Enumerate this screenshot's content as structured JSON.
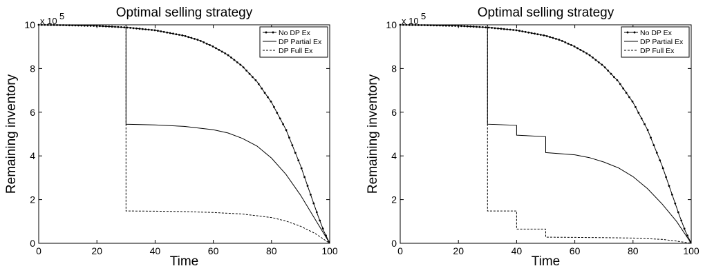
{
  "chart_data": [
    {
      "type": "line",
      "title": "Optimal selling strategy",
      "xlabel": "Time",
      "ylabel": "Remaining inventory",
      "y_multiplier_label": {
        "base": "x 10",
        "exponent": "5"
      },
      "xlim": [
        0,
        100
      ],
      "ylim": [
        0,
        10
      ],
      "x_ticks": [
        "0",
        "20",
        "40",
        "60",
        "80",
        "100"
      ],
      "y_ticks": [
        "0",
        "2",
        "4",
        "6",
        "8",
        "10"
      ],
      "grid": false,
      "legend_position": "top-right",
      "legend": [
        "No DP Ex",
        "DP Partial Ex",
        "DP Full Ex"
      ],
      "series": [
        {
          "name": "No DP Ex",
          "style": "solid-dots",
          "color": "#000000",
          "x": [
            0,
            10,
            20,
            30,
            40,
            50,
            55,
            60,
            65,
            70,
            75,
            80,
            85,
            90,
            93,
            96,
            98,
            100
          ],
          "y": [
            10,
            9.98,
            9.95,
            9.88,
            9.75,
            9.5,
            9.3,
            9.0,
            8.62,
            8.1,
            7.4,
            6.45,
            5.2,
            3.55,
            2.4,
            1.25,
            0.55,
            0
          ]
        },
        {
          "name": "DP Partial Ex",
          "style": "solid",
          "color": "#000000",
          "x": [
            0,
            30,
            30,
            40,
            50,
            60,
            65,
            70,
            75,
            80,
            85,
            90,
            95,
            100
          ],
          "y": [
            10,
            10,
            5.45,
            5.42,
            5.35,
            5.2,
            5.05,
            4.8,
            4.45,
            3.9,
            3.15,
            2.2,
            1.1,
            0
          ]
        },
        {
          "name": "DP Full Ex",
          "style": "dashed",
          "color": "#000000",
          "x": [
            0,
            30,
            30,
            40,
            50,
            60,
            70,
            80,
            85,
            90,
            95,
            100
          ],
          "y": [
            10,
            10,
            1.48,
            1.47,
            1.45,
            1.41,
            1.34,
            1.18,
            1.02,
            0.78,
            0.45,
            0
          ]
        }
      ]
    },
    {
      "type": "line",
      "title": "Optimal selling strategy",
      "xlabel": "Time",
      "ylabel": "Remaining inventory",
      "y_multiplier_label": {
        "base": "x 10",
        "exponent": "5"
      },
      "xlim": [
        0,
        100
      ],
      "ylim": [
        0,
        10
      ],
      "x_ticks": [
        "0",
        "20",
        "40",
        "60",
        "80",
        "100"
      ],
      "y_ticks": [
        "0",
        "2",
        "4",
        "6",
        "8",
        "10"
      ],
      "grid": false,
      "legend_position": "top-right",
      "legend": [
        "No DP Ex",
        "DP Partial Ex",
        "DP Full Ex"
      ],
      "series": [
        {
          "name": "No DP Ex",
          "style": "solid-dots",
          "color": "#000000",
          "x": [
            0,
            10,
            20,
            30,
            40,
            50,
            55,
            60,
            65,
            70,
            75,
            80,
            85,
            90,
            93,
            96,
            98,
            100
          ],
          "y": [
            10,
            9.98,
            9.95,
            9.88,
            9.75,
            9.5,
            9.3,
            9.0,
            8.62,
            8.1,
            7.4,
            6.45,
            5.2,
            3.55,
            2.4,
            1.25,
            0.55,
            0
          ]
        },
        {
          "name": "DP Partial Ex",
          "style": "solid",
          "color": "#000000",
          "x": [
            0,
            30,
            30,
            40,
            40,
            50,
            50,
            60,
            65,
            70,
            75,
            80,
            85,
            90,
            95,
            100
          ],
          "y": [
            10,
            10,
            5.45,
            5.4,
            4.95,
            4.88,
            4.15,
            4.05,
            3.92,
            3.72,
            3.45,
            3.05,
            2.5,
            1.8,
            1.0,
            0
          ]
        },
        {
          "name": "DP Full Ex",
          "style": "dashed",
          "color": "#000000",
          "x": [
            0,
            30,
            30,
            40,
            40,
            50,
            50,
            60,
            70,
            80,
            90,
            95,
            100
          ],
          "y": [
            10,
            10,
            1.48,
            1.48,
            0.65,
            0.65,
            0.28,
            0.27,
            0.26,
            0.24,
            0.18,
            0.1,
            0
          ]
        }
      ]
    }
  ]
}
